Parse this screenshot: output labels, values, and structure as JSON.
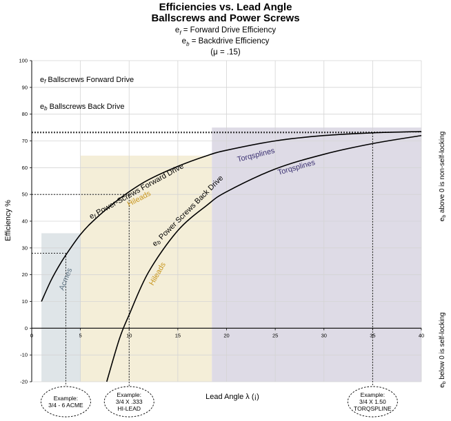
{
  "header": {
    "title_line1": "Efficiencies vs. Lead Angle",
    "title_line2": "Ballscrews and Power Screws",
    "def_forward_sym": "e",
    "def_forward_sub": "f",
    "def_forward_text": " = Forward Drive Efficiency",
    "def_back_sym": "e",
    "def_back_sub": "b",
    "def_back_text": " = Backdrive Efficiency",
    "mu_text": "(μ = .15)"
  },
  "colors": {
    "acme_region": "#dfe5e8",
    "hileads_region": "#f4eed8",
    "torq_region": "#dedbe6",
    "grid": "#d4d4d4",
    "hileads_text": "#c8961e",
    "torq_text": "#3c3272",
    "acme_text": "#5d7282"
  },
  "chart_data": {
    "type": "line",
    "xlabel": "Lead Angle λ (¡)",
    "ylabel": "Efficiency %",
    "right_label_top": "e_b above 0 is non-self-locking",
    "right_label_bottom": "e_b below 0 is self-locking",
    "xlim": [
      0,
      40
    ],
    "ylim": [
      -20,
      100
    ],
    "xticks": [
      0,
      5,
      10,
      15,
      20,
      25,
      30,
      35,
      40
    ],
    "yticks": [
      -20,
      -10,
      0,
      10,
      20,
      30,
      40,
      50,
      60,
      70,
      80,
      90,
      100
    ],
    "grid": true,
    "series": [
      {
        "name": "e_f Power Screws Forward Drive",
        "x": [
          1,
          2,
          3,
          4,
          5,
          6,
          8,
          10,
          12,
          15,
          18,
          20,
          25,
          30,
          35,
          40
        ],
        "y": [
          10,
          18,
          24.5,
          30,
          35,
          39,
          45.5,
          51,
          55.5,
          60.5,
          64.5,
          66.5,
          70,
          72,
          73,
          73.5
        ]
      },
      {
        "name": "e_b Power Screws Back Drive",
        "x": [
          7.7,
          9,
          10,
          12,
          15,
          18,
          20,
          25,
          30,
          35,
          40
        ],
        "y": [
          -20,
          -4,
          5,
          21,
          36.5,
          46,
          51,
          59.5,
          65,
          69,
          72
        ]
      }
    ],
    "regions": [
      {
        "label": "Acmes",
        "x": [
          1,
          5
        ],
        "y_top": 35.5
      },
      {
        "label": "Hileads",
        "x": [
          5,
          18.5
        ],
        "y_top": 64.5
      },
      {
        "label": "Torqsplines",
        "x": [
          18.5,
          40
        ],
        "y_top": 75
      }
    ],
    "annotations": {
      "ballscrew_forward": {
        "sym": "e",
        "sub": "f",
        "text": " Ballscrews Forward Drive"
      },
      "ballscrew_back": {
        "sym": "e",
        "sub": "b",
        "text": " Ballscrews Back Drive"
      },
      "curve_forward": "Power-Screws Forward Drive",
      "curve_back": "Power Screws Back Drive",
      "hileads_label": "Hileads",
      "torq_label": "Torqsplines",
      "acme_label": "Acmes"
    },
    "reference_lines": [
      {
        "x": 3.5,
        "y": 28,
        "example": [
          "Example:",
          "3/4 - 6 ACME"
        ]
      },
      {
        "x": 10,
        "y": 50,
        "example": [
          "Example:",
          "3/4 X .333",
          "HI-LEAD"
        ]
      },
      {
        "x": 35,
        "y": 73,
        "example": [
          "Example:",
          "3/4 X 1.50",
          "TORQSPLINE"
        ]
      }
    ]
  }
}
